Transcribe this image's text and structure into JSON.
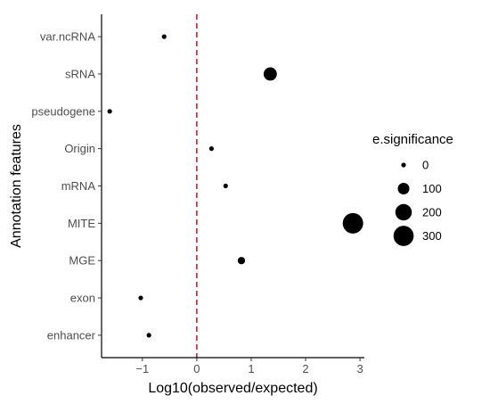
{
  "chart_data": {
    "type": "scatter",
    "xlabel": "Log10(observed/expected)",
    "ylabel": "Annotation features",
    "xlim": [
      -1.75,
      3.08
    ],
    "x_ticks": [
      -1,
      0,
      1,
      2,
      3
    ],
    "x_tick_labels": [
      "−1",
      "0",
      "1",
      "2",
      "3"
    ],
    "categories": [
      "enhancer",
      "exon",
      "MGE",
      "MITE",
      "mRNA",
      "Origin",
      "pseudogene",
      "sRNA",
      "var.ncRNA"
    ],
    "points": [
      {
        "category": "var.ncRNA",
        "x": -0.6,
        "size": 5
      },
      {
        "category": "sRNA",
        "x": 1.35,
        "size": 130
      },
      {
        "category": "pseudogene",
        "x": -1.6,
        "size": 5
      },
      {
        "category": "Origin",
        "x": 0.27,
        "size": 8
      },
      {
        "category": "mRNA",
        "x": 0.53,
        "size": 15
      },
      {
        "category": "MITE",
        "x": 2.87,
        "size": 310
      },
      {
        "category": "MGE",
        "x": 0.82,
        "size": 40
      },
      {
        "category": "exon",
        "x": -1.03,
        "size": 5
      },
      {
        "category": "enhancer",
        "x": -0.88,
        "size": 5
      }
    ],
    "reference_line": {
      "x": 0,
      "style": "dashed",
      "color": "#e31a1c"
    },
    "legend": {
      "title": "e.significance",
      "position": "right",
      "entries": [
        {
          "label": "0",
          "size": 0
        },
        {
          "label": "100",
          "size": 100
        },
        {
          "label": "200",
          "size": 200
        },
        {
          "label": "300",
          "size": 300
        }
      ]
    },
    "point_color": "#000000",
    "grid": false
  }
}
